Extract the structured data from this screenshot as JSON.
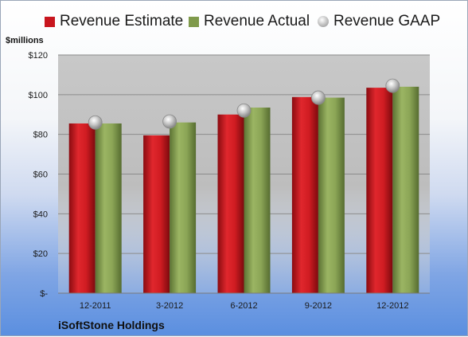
{
  "company": "iSoftStone Holdings",
  "unit_label": "$millions",
  "colors": {
    "estimate": "#c8161e",
    "actual": "#7f9a4b",
    "gaap": "#b5b5b5"
  },
  "chart_data": {
    "type": "bar",
    "categories": [
      "12-2011",
      "3-2012",
      "6-2012",
      "9-2012",
      "12-2012"
    ],
    "series": [
      {
        "name": "Revenue Estimate",
        "kind": "bar",
        "values": [
          85.5,
          79.5,
          90,
          98.8,
          103.5
        ]
      },
      {
        "name": "Revenue Actual",
        "kind": "bar",
        "values": [
          85.5,
          86,
          93.5,
          98.5,
          104
        ]
      },
      {
        "name": "Revenue GAAP",
        "kind": "marker",
        "values": [
          86,
          86.5,
          92,
          98.5,
          104.5
        ]
      }
    ],
    "ylabel": "$millions",
    "ylim": [
      0,
      120
    ],
    "yticks": [
      0,
      20,
      40,
      60,
      80,
      100,
      120
    ],
    "ytick_labels": [
      "$-",
      "$20",
      "$40",
      "$60",
      "$80",
      "$100",
      "$120"
    ],
    "grid": true,
    "legend_position": "top"
  }
}
